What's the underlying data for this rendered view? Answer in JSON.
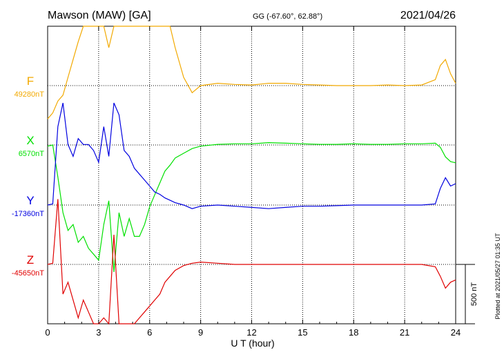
{
  "header": {
    "station": "Mawson (MAW)  [GA]",
    "coords": "GG (-67.60°,  62.88°)",
    "date": "2021/04/26"
  },
  "footer": {
    "plotted": "Plotted at 2021/05/27 01:35 UT"
  },
  "chart_data": {
    "type": "line",
    "xlabel": "U T (hour)",
    "xlim": [
      0,
      24
    ],
    "xticks": [
      0,
      3,
      6,
      9,
      12,
      15,
      18,
      21,
      24
    ],
    "scale_bar_label": "500 nT",
    "scale_bar_nT": 500,
    "grid": true,
    "series": [
      {
        "name": "F",
        "baseline_label": "49280nT",
        "baseline": 49280,
        "color": "#f2a900",
        "x": [
          0,
          0.3,
          0.6,
          0.9,
          1.2,
          1.5,
          1.8,
          2.1,
          2.4,
          2.7,
          3.0,
          3.3,
          3.6,
          3.9,
          4.2,
          4.5,
          4.8,
          5.1,
          5.4,
          5.7,
          6.0,
          6.3,
          6.6,
          6.9,
          7.2,
          7.5,
          8.0,
          8.5,
          9,
          10,
          11,
          12,
          13,
          14,
          15,
          16,
          17,
          18,
          19,
          20,
          21,
          22,
          22.8,
          23.1,
          23.4,
          23.7,
          24
        ],
        "y": [
          49000,
          49050,
          49150,
          49200,
          49350,
          49500,
          49650,
          49800,
          49950,
          50050,
          49900,
          50150,
          49600,
          50400,
          50800,
          50600,
          50550,
          50400,
          50350,
          50300,
          50200,
          50150,
          50050,
          49950,
          49800,
          49600,
          49350,
          49220,
          49280,
          49300,
          49290,
          49285,
          49300,
          49300,
          49290,
          49285,
          49280,
          49280,
          49280,
          49285,
          49280,
          49285,
          49330,
          49450,
          49500,
          49380,
          49300
        ]
      },
      {
        "name": "X",
        "baseline_label": "6570nT",
        "baseline": 6570,
        "color": "#00e000",
        "x": [
          0,
          0.3,
          0.6,
          0.9,
          1.2,
          1.5,
          1.8,
          2.1,
          2.4,
          2.7,
          3.0,
          3.3,
          3.6,
          3.9,
          4.2,
          4.5,
          4.8,
          5.1,
          5.4,
          5.7,
          6.0,
          6.3,
          6.6,
          6.9,
          7.2,
          7.5,
          8.0,
          8.5,
          9,
          10,
          11,
          12,
          13,
          14,
          15,
          16,
          17,
          18,
          19,
          20,
          21,
          22,
          22.8,
          23.1,
          23.4,
          23.7,
          24
        ],
        "y": [
          6560,
          6570,
          6300,
          6000,
          5850,
          5900,
          5750,
          5800,
          5700,
          5650,
          5600,
          5900,
          6100,
          5500,
          6000,
          5800,
          5950,
          5800,
          5800,
          5900,
          6050,
          6150,
          6250,
          6350,
          6400,
          6460,
          6500,
          6540,
          6560,
          6575,
          6580,
          6580,
          6590,
          6585,
          6580,
          6575,
          6575,
          6580,
          6575,
          6575,
          6580,
          6580,
          6585,
          6550,
          6470,
          6430,
          6420
        ]
      },
      {
        "name": "Y",
        "baseline_label": "-17360nT",
        "baseline": -17360,
        "color": "#0000e0",
        "x": [
          0,
          0.3,
          0.6,
          0.9,
          1.2,
          1.5,
          1.8,
          2.1,
          2.4,
          2.7,
          3.0,
          3.3,
          3.6,
          3.9,
          4.2,
          4.5,
          4.8,
          5.1,
          5.4,
          5.7,
          6.0,
          6.3,
          6.6,
          6.9,
          7.2,
          7.5,
          8.0,
          8.5,
          9,
          10,
          11,
          12,
          13,
          14,
          15,
          16,
          17,
          18,
          19,
          20,
          21,
          22,
          22.8,
          23.1,
          23.4,
          23.7,
          24
        ],
        "y": [
          -17360,
          -17350,
          -16700,
          -16500,
          -16850,
          -16950,
          -16800,
          -16850,
          -16850,
          -16900,
          -17000,
          -16700,
          -16950,
          -16500,
          -16600,
          -16900,
          -16950,
          -17050,
          -17100,
          -17150,
          -17200,
          -17250,
          -17270,
          -17300,
          -17320,
          -17340,
          -17360,
          -17390,
          -17370,
          -17360,
          -17370,
          -17380,
          -17390,
          -17380,
          -17370,
          -17370,
          -17365,
          -17360,
          -17360,
          -17360,
          -17360,
          -17360,
          -17350,
          -17220,
          -17130,
          -17200,
          -17180
        ]
      },
      {
        "name": "Z",
        "baseline_label": "-45650nT",
        "baseline": -45650,
        "color": "#e00000",
        "x": [
          0,
          0.3,
          0.6,
          0.9,
          1.2,
          1.5,
          1.8,
          2.1,
          2.4,
          2.7,
          3.0,
          3.3,
          3.6,
          3.9,
          4.2,
          4.5,
          4.8,
          5.1,
          5.4,
          5.7,
          6.0,
          6.3,
          6.6,
          6.9,
          7.2,
          7.5,
          8.0,
          8.5,
          9,
          10,
          11,
          12,
          13,
          14,
          15,
          16,
          17,
          18,
          19,
          20,
          21,
          22,
          22.8,
          23.1,
          23.4,
          23.7,
          24
        ],
        "y": [
          -45650,
          -45640,
          -45100,
          -45900,
          -45800,
          -45950,
          -46100,
          -45950,
          -46050,
          -46200,
          -46300,
          -46100,
          -46200,
          -45400,
          -46400,
          -46300,
          -46150,
          -46200,
          -46100,
          -46050,
          -46000,
          -45950,
          -45900,
          -45800,
          -45750,
          -45700,
          -45660,
          -45640,
          -45630,
          -45640,
          -45650,
          -45650,
          -45650,
          -45650,
          -45650,
          -45650,
          -45650,
          -45650,
          -45650,
          -45650,
          -45650,
          -45650,
          -45670,
          -45750,
          -45850,
          -45800,
          -45780
        ]
      }
    ]
  }
}
